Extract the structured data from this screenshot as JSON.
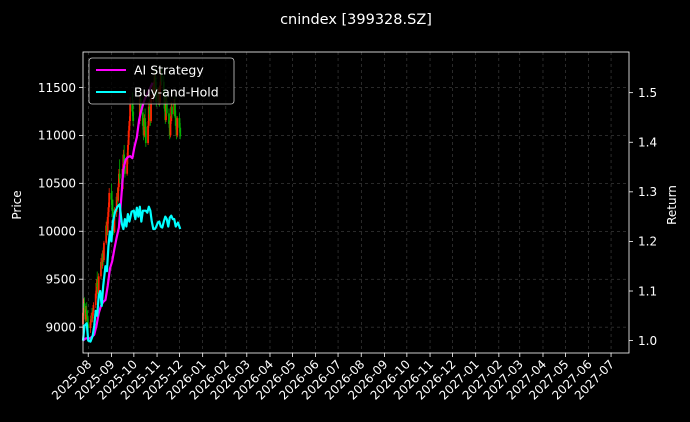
{
  "chart_data": {
    "type": "line",
    "title": "cnindex [399328.SZ]",
    "ylabel_left": "Price",
    "ylabel_right": "Return",
    "xlim": [
      "2025-07-25",
      "2027-07-25"
    ],
    "ylim_left": [
      8730,
      11870
    ],
    "ylim_right": [
      0.975,
      1.582
    ],
    "x_ticks": [
      "2025-08",
      "2025-09",
      "2025-10",
      "2025-11",
      "2025-12",
      "2026-01",
      "2026-02",
      "2026-03",
      "2026-04",
      "2026-05",
      "2026-06",
      "2026-07",
      "2026-08",
      "2026-09",
      "2026-10",
      "2026-11",
      "2026-12",
      "2027-01",
      "2027-02",
      "2027-03",
      "2027-04",
      "2027-05",
      "2027-06",
      "2027-07"
    ],
    "y_ticks_left": [
      9000,
      9500,
      10000,
      10500,
      11000,
      11500
    ],
    "y_ticks_right": [
      1.0,
      1.1,
      1.2,
      1.3,
      1.4,
      1.5
    ],
    "grid": true,
    "legend_position": "top-left",
    "colors": {
      "background": "#000000",
      "ai_strategy": "#ff00ff",
      "buy_and_hold": "#00ffff",
      "candle_up": "#ff2200",
      "candle_down": "#00b000",
      "grid": "#555555",
      "text": "#ffffff"
    },
    "candles": [
      {
        "date": "2025-07-25",
        "open": 9030,
        "high": 9200,
        "low": 8970,
        "close": 9150
      },
      {
        "date": "2025-07-26",
        "open": 9160,
        "high": 9300,
        "low": 9120,
        "close": 9260
      },
      {
        "date": "2025-07-27",
        "open": 9250,
        "high": 9310,
        "low": 9150,
        "close": 9200
      },
      {
        "date": "2025-07-28",
        "open": 9190,
        "high": 9240,
        "low": 9050,
        "close": 9080
      },
      {
        "date": "2025-07-29",
        "open": 9080,
        "high": 9220,
        "low": 9060,
        "close": 9180
      },
      {
        "date": "2025-07-30",
        "open": 9180,
        "high": 9260,
        "low": 9100,
        "close": 9130
      },
      {
        "date": "2025-07-31",
        "open": 9120,
        "high": 9170,
        "low": 9000,
        "close": 9030
      },
      {
        "date": "2025-08-01",
        "open": 9030,
        "high": 9100,
        "low": 8950,
        "close": 8990
      },
      {
        "date": "2025-08-04",
        "open": 8990,
        "high": 9080,
        "low": 8940,
        "close": 9050
      },
      {
        "date": "2025-08-05",
        "open": 9050,
        "high": 9150,
        "low": 9020,
        "close": 9120
      },
      {
        "date": "2025-08-06",
        "open": 9120,
        "high": 9200,
        "low": 9060,
        "close": 9090
      },
      {
        "date": "2025-08-07",
        "open": 9090,
        "high": 9180,
        "low": 9050,
        "close": 9160
      },
      {
        "date": "2025-08-08",
        "open": 9160,
        "high": 9260,
        "low": 9120,
        "close": 9230
      },
      {
        "date": "2025-08-11",
        "open": 9230,
        "high": 9380,
        "low": 9200,
        "close": 9350
      },
      {
        "date": "2025-08-12",
        "open": 9350,
        "high": 9500,
        "low": 9300,
        "close": 9460
      },
      {
        "date": "2025-08-13",
        "open": 9460,
        "high": 9580,
        "low": 9380,
        "close": 9420
      },
      {
        "date": "2025-08-14",
        "open": 9420,
        "high": 9520,
        "low": 9300,
        "close": 9340
      },
      {
        "date": "2025-08-15",
        "open": 9340,
        "high": 9560,
        "low": 9320,
        "close": 9530
      },
      {
        "date": "2025-08-18",
        "open": 9530,
        "high": 9720,
        "low": 9500,
        "close": 9680
      },
      {
        "date": "2025-08-19",
        "open": 9680,
        "high": 9760,
        "low": 9600,
        "close": 9640
      },
      {
        "date": "2025-08-20",
        "open": 9640,
        "high": 9800,
        "low": 9610,
        "close": 9770
      },
      {
        "date": "2025-08-21",
        "open": 9770,
        "high": 9830,
        "low": 9650,
        "close": 9700
      },
      {
        "date": "2025-08-22",
        "open": 9700,
        "high": 9900,
        "low": 9680,
        "close": 9880
      },
      {
        "date": "2025-08-25",
        "open": 9880,
        "high": 10100,
        "low": 9860,
        "close": 10060
      },
      {
        "date": "2025-08-26",
        "open": 10060,
        "high": 10120,
        "low": 9950,
        "close": 9990
      },
      {
        "date": "2025-08-27",
        "open": 9990,
        "high": 10200,
        "low": 9960,
        "close": 10150
      },
      {
        "date": "2025-08-28",
        "open": 10150,
        "high": 10300,
        "low": 10080,
        "close": 10250
      },
      {
        "date": "2025-08-29",
        "open": 10250,
        "high": 10450,
        "low": 10200,
        "close": 10400
      },
      {
        "date": "2025-09-01",
        "open": 10400,
        "high": 10500,
        "low": 10280,
        "close": 10330
      },
      {
        "date": "2025-09-02",
        "open": 10330,
        "high": 10420,
        "low": 10180,
        "close": 10230
      },
      {
        "date": "2025-09-03",
        "open": 10230,
        "high": 10330,
        "low": 10100,
        "close": 10150
      },
      {
        "date": "2025-09-04",
        "open": 10150,
        "high": 10200,
        "low": 9960,
        "close": 10000
      },
      {
        "date": "2025-09-05",
        "open": 10000,
        "high": 10250,
        "low": 9980,
        "close": 10200
      },
      {
        "date": "2025-09-08",
        "open": 10200,
        "high": 10400,
        "low": 10150,
        "close": 10360
      },
      {
        "date": "2025-09-09",
        "open": 10360,
        "high": 10450,
        "low": 10280,
        "close": 10320
      },
      {
        "date": "2025-09-10",
        "open": 10320,
        "high": 10500,
        "low": 10300,
        "close": 10460
      },
      {
        "date": "2025-09-11",
        "open": 10460,
        "high": 10650,
        "low": 10420,
        "close": 10600
      },
      {
        "date": "2025-09-12",
        "open": 10600,
        "high": 10750,
        "low": 10500,
        "close": 10550
      },
      {
        "date": "2025-09-15",
        "open": 10550,
        "high": 10650,
        "low": 10400,
        "close": 10440
      },
      {
        "date": "2025-09-16",
        "open": 10440,
        "high": 10700,
        "low": 10420,
        "close": 10650
      },
      {
        "date": "2025-09-17",
        "open": 10650,
        "high": 10850,
        "low": 10600,
        "close": 10800
      },
      {
        "date": "2025-09-18",
        "open": 10800,
        "high": 10900,
        "low": 10620,
        "close": 10680
      },
      {
        "date": "2025-09-19",
        "open": 10680,
        "high": 10760,
        "low": 10560,
        "close": 10600
      },
      {
        "date": "2025-09-22",
        "open": 10600,
        "high": 10820,
        "low": 10580,
        "close": 10780
      },
      {
        "date": "2025-09-23",
        "open": 10780,
        "high": 10950,
        "low": 10700,
        "close": 10900
      },
      {
        "date": "2025-09-24",
        "open": 10900,
        "high": 11100,
        "low": 10850,
        "close": 11050
      },
      {
        "date": "2025-09-25",
        "open": 11050,
        "high": 11200,
        "low": 10980,
        "close": 11150
      },
      {
        "date": "2025-09-26",
        "open": 11150,
        "high": 11400,
        "low": 11100,
        "close": 11320
      },
      {
        "date": "2025-09-29",
        "open": 11320,
        "high": 11450,
        "low": 11200,
        "close": 11250
      },
      {
        "date": "2025-09-30",
        "open": 11250,
        "high": 11350,
        "low": 11100,
        "close": 11150
      },
      {
        "date": "2025-10-09",
        "open": 11150,
        "high": 11420,
        "low": 11120,
        "close": 11380
      },
      {
        "date": "2025-10-10",
        "open": 11380,
        "high": 11450,
        "low": 11200,
        "close": 11240
      },
      {
        "date": "2025-10-13",
        "open": 11240,
        "high": 11300,
        "low": 11060,
        "close": 11100
      },
      {
        "date": "2025-10-14",
        "open": 11100,
        "high": 11160,
        "low": 10950,
        "close": 11000
      },
      {
        "date": "2025-10-15",
        "open": 11000,
        "high": 11220,
        "low": 10980,
        "close": 11180
      },
      {
        "date": "2025-10-16",
        "open": 11180,
        "high": 11280,
        "low": 11050,
        "close": 11090
      },
      {
        "date": "2025-10-17",
        "open": 11090,
        "high": 11140,
        "low": 10880,
        "close": 10920
      },
      {
        "date": "2025-10-20",
        "open": 10920,
        "high": 11150,
        "low": 10900,
        "close": 11100
      },
      {
        "date": "2025-10-21",
        "open": 11100,
        "high": 11350,
        "low": 11080,
        "close": 11300
      },
      {
        "date": "2025-10-22",
        "open": 11300,
        "high": 11380,
        "low": 11180,
        "close": 11220
      },
      {
        "date": "2025-10-23",
        "open": 11220,
        "high": 11300,
        "low": 11100,
        "close": 11150
      },
      {
        "date": "2025-10-24",
        "open": 11150,
        "high": 11420,
        "low": 11130,
        "close": 11380
      },
      {
        "date": "2025-10-27",
        "open": 11380,
        "high": 11560,
        "low": 11350,
        "close": 11520
      },
      {
        "date": "2025-10-28",
        "open": 11520,
        "high": 11620,
        "low": 11400,
        "close": 11450
      },
      {
        "date": "2025-10-29",
        "open": 11450,
        "high": 11650,
        "low": 11420,
        "close": 11600
      },
      {
        "date": "2025-10-30",
        "open": 11600,
        "high": 11700,
        "low": 11460,
        "close": 11500
      },
      {
        "date": "2025-10-31",
        "open": 11500,
        "high": 11560,
        "low": 11300,
        "close": 11350
      },
      {
        "date": "2025-11-03",
        "open": 11350,
        "high": 11500,
        "low": 11320,
        "close": 11460
      },
      {
        "date": "2025-11-04",
        "open": 11460,
        "high": 11520,
        "low": 11300,
        "close": 11340
      },
      {
        "date": "2025-11-05",
        "open": 11340,
        "high": 11560,
        "low": 11320,
        "close": 11520
      },
      {
        "date": "2025-11-06",
        "open": 11520,
        "high": 11680,
        "low": 11480,
        "close": 11640
      },
      {
        "date": "2025-11-07",
        "open": 11640,
        "high": 11700,
        "low": 11520,
        "close": 11560
      },
      {
        "date": "2025-11-10",
        "open": 11560,
        "high": 11620,
        "low": 11400,
        "close": 11430
      },
      {
        "date": "2025-11-11",
        "open": 11430,
        "high": 11480,
        "low": 11250,
        "close": 11280
      },
      {
        "date": "2025-11-12",
        "open": 11280,
        "high": 11340,
        "low": 11120,
        "close": 11160
      },
      {
        "date": "2025-11-13",
        "open": 11160,
        "high": 11400,
        "low": 11140,
        "close": 11360
      },
      {
        "date": "2025-11-14",
        "open": 11360,
        "high": 11420,
        "low": 11200,
        "close": 11230
      },
      {
        "date": "2025-11-17",
        "open": 11230,
        "high": 11280,
        "low": 11080,
        "close": 11120
      },
      {
        "date": "2025-11-18",
        "open": 11120,
        "high": 11160,
        "low": 10960,
        "close": 11000
      },
      {
        "date": "2025-11-19",
        "open": 11000,
        "high": 11200,
        "low": 10980,
        "close": 11150
      },
      {
        "date": "2025-11-20",
        "open": 11150,
        "high": 11350,
        "low": 11120,
        "close": 11300
      },
      {
        "date": "2025-11-21",
        "open": 11300,
        "high": 11340,
        "low": 11180,
        "close": 11220
      },
      {
        "date": "2025-11-24",
        "open": 11220,
        "high": 11380,
        "low": 11200,
        "close": 11340
      },
      {
        "date": "2025-11-25",
        "open": 11340,
        "high": 11400,
        "low": 11180,
        "close": 11200
      },
      {
        "date": "2025-11-26",
        "open": 11200,
        "high": 11260,
        "low": 11060,
        "close": 11100
      },
      {
        "date": "2025-11-27",
        "open": 11100,
        "high": 11150,
        "low": 10960,
        "close": 11000
      },
      {
        "date": "2025-11-28",
        "open": 11000,
        "high": 11200,
        "low": 10980,
        "close": 11180
      },
      {
        "date": "2025-12-01",
        "open": 11180,
        "high": 11230,
        "low": 11040,
        "close": 11080
      },
      {
        "date": "2025-12-02",
        "open": 11080,
        "high": 11130,
        "low": 10960,
        "close": 10990
      }
    ],
    "series": [
      {
        "name": "AI Strategy",
        "points": [
          [
            "2025-07-25",
            1.0
          ],
          [
            "2025-07-28",
            1.004
          ],
          [
            "2025-07-31",
            1.005
          ],
          [
            "2025-08-03",
            1.004
          ],
          [
            "2025-08-06",
            1.008
          ],
          [
            "2025-08-09",
            1.012
          ],
          [
            "2025-08-12",
            1.03
          ],
          [
            "2025-08-15",
            1.055
          ],
          [
            "2025-08-18",
            1.07
          ],
          [
            "2025-08-21",
            1.078
          ],
          [
            "2025-08-24",
            1.082
          ],
          [
            "2025-08-27",
            1.11
          ],
          [
            "2025-08-30",
            1.145
          ],
          [
            "2025-09-02",
            1.16
          ],
          [
            "2025-09-05",
            1.185
          ],
          [
            "2025-09-08",
            1.208
          ],
          [
            "2025-09-11",
            1.228
          ],
          [
            "2025-09-14",
            1.285
          ],
          [
            "2025-09-17",
            1.345
          ],
          [
            "2025-09-20",
            1.365
          ],
          [
            "2025-09-23",
            1.37
          ],
          [
            "2025-09-26",
            1.372
          ],
          [
            "2025-09-29",
            1.368
          ],
          [
            "2025-10-02",
            1.392
          ],
          [
            "2025-10-05",
            1.41
          ],
          [
            "2025-10-08",
            1.445
          ],
          [
            "2025-10-11",
            1.465
          ],
          [
            "2025-10-14",
            1.48
          ],
          [
            "2025-10-17",
            1.492
          ],
          [
            "2025-10-20",
            1.5
          ],
          [
            "2025-10-23",
            1.51
          ],
          [
            "2025-10-26",
            1.52
          ]
        ]
      },
      {
        "name": "Buy-and-Hold",
        "points": [
          [
            "2025-07-25",
            1.0
          ],
          [
            "2025-07-27",
            1.03
          ],
          [
            "2025-07-30",
            1.035
          ],
          [
            "2025-08-01",
            1.0
          ],
          [
            "2025-08-04",
            0.998
          ],
          [
            "2025-08-07",
            1.01
          ],
          [
            "2025-08-09",
            1.03
          ],
          [
            "2025-08-11",
            1.06
          ],
          [
            "2025-08-13",
            1.05
          ],
          [
            "2025-08-15",
            1.09
          ],
          [
            "2025-08-17",
            1.1
          ],
          [
            "2025-08-19",
            1.07
          ],
          [
            "2025-08-21",
            1.11
          ],
          [
            "2025-08-24",
            1.15
          ],
          [
            "2025-08-26",
            1.14
          ],
          [
            "2025-08-28",
            1.19
          ],
          [
            "2025-08-30",
            1.22
          ],
          [
            "2025-09-01",
            1.2
          ],
          [
            "2025-09-03",
            1.24
          ],
          [
            "2025-09-06",
            1.26
          ],
          [
            "2025-09-09",
            1.27
          ],
          [
            "2025-09-12",
            1.275
          ],
          [
            "2025-09-15",
            1.235
          ],
          [
            "2025-09-17",
            1.225
          ],
          [
            "2025-09-19",
            1.245
          ],
          [
            "2025-09-21",
            1.23
          ],
          [
            "2025-09-23",
            1.255
          ],
          [
            "2025-09-25",
            1.24
          ],
          [
            "2025-09-28",
            1.26
          ],
          [
            "2025-10-01",
            1.262
          ],
          [
            "2025-10-03",
            1.245
          ],
          [
            "2025-10-05",
            1.268
          ],
          [
            "2025-10-07",
            1.25
          ],
          [
            "2025-10-09",
            1.27
          ],
          [
            "2025-10-11",
            1.24
          ],
          [
            "2025-10-13",
            1.262
          ],
          [
            "2025-10-15",
            1.262
          ],
          [
            "2025-10-17",
            1.262
          ],
          [
            "2025-10-19",
            1.258
          ],
          [
            "2025-10-21",
            1.27
          ],
          [
            "2025-10-23",
            1.262
          ],
          [
            "2025-10-25",
            1.24
          ],
          [
            "2025-10-27",
            1.225
          ],
          [
            "2025-10-29",
            1.225
          ],
          [
            "2025-10-31",
            1.23
          ],
          [
            "2025-11-02",
            1.238
          ],
          [
            "2025-11-04",
            1.24
          ],
          [
            "2025-11-06",
            1.23
          ],
          [
            "2025-11-08",
            1.228
          ],
          [
            "2025-11-10",
            1.24
          ],
          [
            "2025-11-12",
            1.25
          ],
          [
            "2025-11-14",
            1.245
          ],
          [
            "2025-11-16",
            1.23
          ],
          [
            "2025-11-18",
            1.248
          ],
          [
            "2025-11-20",
            1.252
          ],
          [
            "2025-11-22",
            1.245
          ],
          [
            "2025-11-24",
            1.245
          ],
          [
            "2025-11-26",
            1.23
          ],
          [
            "2025-11-29",
            1.238
          ],
          [
            "2025-12-02",
            1.225
          ]
        ]
      }
    ]
  }
}
